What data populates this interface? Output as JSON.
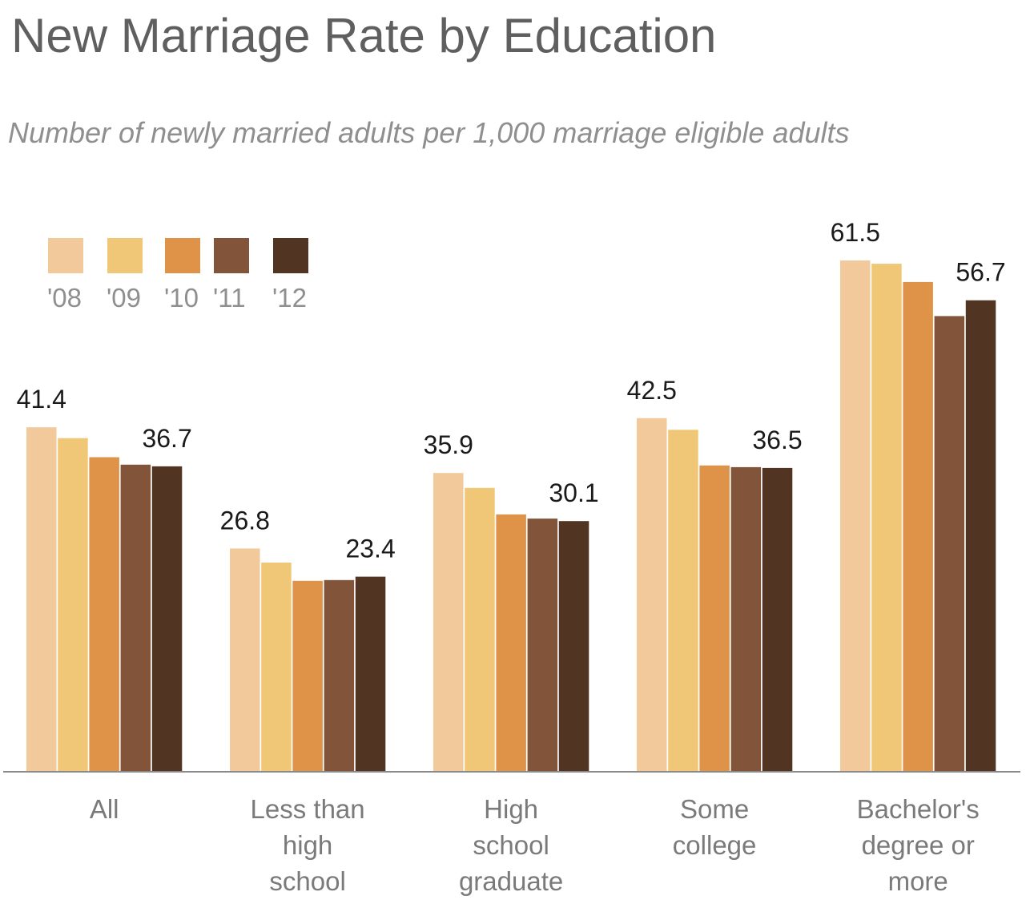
{
  "chart_data": {
    "type": "bar",
    "title": "New Marriage Rate by Education",
    "subtitle": "Number of newly married adults per 1,000 marriage eligible adults",
    "xlabel": "",
    "ylabel": "",
    "ylim": [
      0,
      70
    ],
    "grid": false,
    "legend_position": "top-left",
    "categories": [
      [
        "All"
      ],
      [
        "Less than",
        "high",
        "school"
      ],
      [
        "High",
        "school",
        "graduate"
      ],
      [
        "Some",
        "college"
      ],
      [
        "Bachelor's",
        "degree or",
        "more"
      ]
    ],
    "series": [
      {
        "name": "'08",
        "color": "#f2c99b",
        "values": [
          41.4,
          26.8,
          35.9,
          42.5,
          61.5
        ]
      },
      {
        "name": "'09",
        "color": "#f0c777",
        "values": [
          40.1,
          25.1,
          34.1,
          41.1,
          61.1
        ]
      },
      {
        "name": "'10",
        "color": "#de9348",
        "values": [
          37.8,
          22.9,
          30.9,
          36.8,
          58.9
        ]
      },
      {
        "name": "'11",
        "color": "#82553a",
        "values": [
          36.9,
          23.0,
          30.4,
          36.6,
          54.8
        ]
      },
      {
        "name": "'12",
        "color": "#523423",
        "values": [
          36.7,
          23.4,
          30.1,
          36.5,
          56.7
        ]
      }
    ],
    "value_labels": [
      {
        "category": 0,
        "series": 0,
        "text": "41.4"
      },
      {
        "category": 0,
        "series": 4,
        "text": "36.7"
      },
      {
        "category": 1,
        "series": 0,
        "text": "26.8"
      },
      {
        "category": 1,
        "series": 4,
        "text": "23.4"
      },
      {
        "category": 2,
        "series": 0,
        "text": "35.9"
      },
      {
        "category": 2,
        "series": 4,
        "text": "30.1"
      },
      {
        "category": 3,
        "series": 0,
        "text": "42.5"
      },
      {
        "category": 3,
        "series": 4,
        "text": "36.5"
      },
      {
        "category": 4,
        "series": 0,
        "text": "61.5"
      },
      {
        "category": 4,
        "series": 4,
        "text": "56.7"
      }
    ]
  }
}
